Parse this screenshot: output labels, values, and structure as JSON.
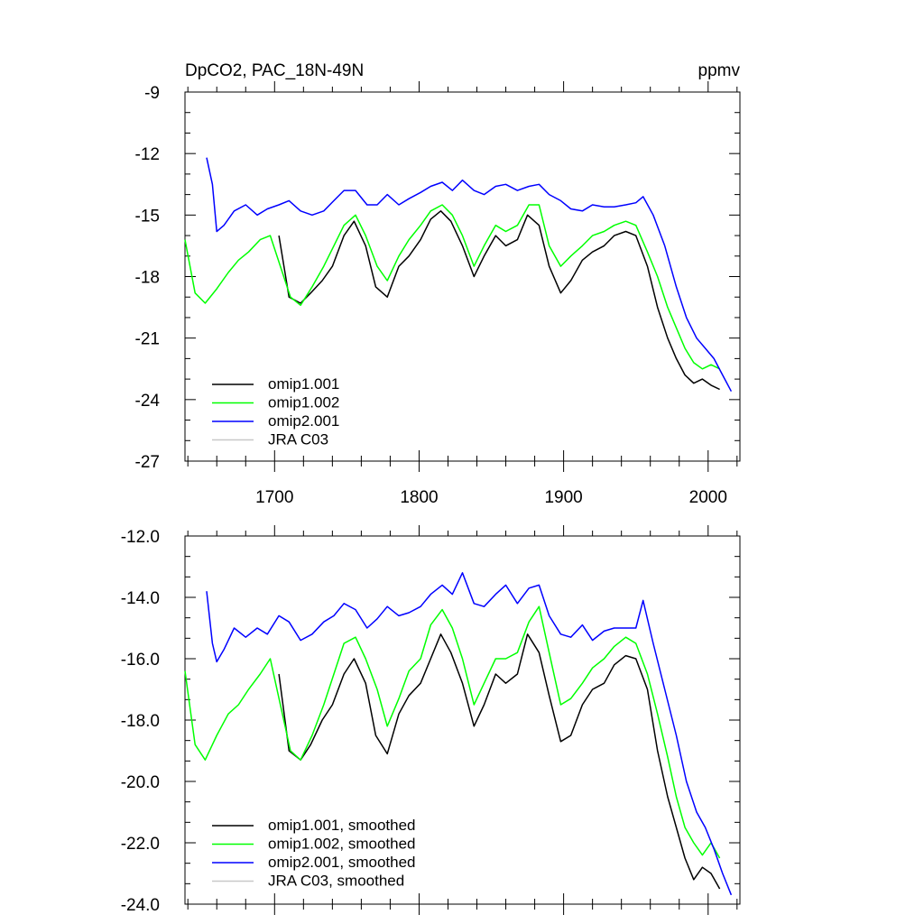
{
  "chart_data": [
    {
      "type": "line",
      "title": "DpCO2, PAC_18N-49N",
      "units": "ppmv",
      "xlim": [
        1638,
        2022
      ],
      "ylim": [
        -27,
        -9
      ],
      "yticks": [
        -9,
        -12,
        -15,
        -18,
        -21,
        -24,
        -27
      ],
      "ytick_labels": [
        "-9",
        "-12",
        "-15",
        "-18",
        "-21",
        "-24",
        "-27"
      ],
      "xticks": [
        1700,
        1800,
        1900,
        2000
      ],
      "xtick_labels": [
        "1700",
        "1800",
        "1900",
        "2000"
      ],
      "legend_position": "bottom-left",
      "series": [
        {
          "name": "omip1.001",
          "color": "#000000",
          "x": [
            1703,
            1710,
            1718,
            1725,
            1733,
            1740,
            1748,
            1755,
            1763,
            1770,
            1778,
            1786,
            1793,
            1801,
            1808,
            1815,
            1822,
            1830,
            1838,
            1845,
            1853,
            1860,
            1868,
            1875,
            1883,
            1890,
            1898,
            1905,
            1913,
            1920,
            1928,
            1935,
            1943,
            1950,
            1958,
            1965,
            1972,
            1978,
            1984,
            1990,
            1996,
            2002,
            2008
          ],
          "y": [
            -16.0,
            -19.0,
            -19.3,
            -18.8,
            -18.2,
            -17.5,
            -16.0,
            -15.3,
            -16.5,
            -18.5,
            -19.0,
            -17.5,
            -17.0,
            -16.2,
            -15.2,
            -14.8,
            -15.3,
            -16.5,
            -18.0,
            -17.0,
            -16.0,
            -16.5,
            -16.2,
            -15.0,
            -15.5,
            -17.5,
            -18.8,
            -18.2,
            -17.2,
            -16.8,
            -16.5,
            -16.0,
            -15.8,
            -16.0,
            -17.5,
            -19.5,
            -21.0,
            -22.0,
            -22.8,
            -23.2,
            -23.0,
            -23.3,
            -23.5
          ]
        },
        {
          "name": "omip1.002",
          "color": "#00ff00",
          "x": [
            1638,
            1645,
            1652,
            1660,
            1668,
            1675,
            1682,
            1690,
            1697,
            1704,
            1711,
            1718,
            1726,
            1734,
            1741,
            1748,
            1756,
            1763,
            1771,
            1778,
            1786,
            1793,
            1801,
            1808,
            1816,
            1823,
            1830,
            1838,
            1845,
            1853,
            1860,
            1868,
            1876,
            1883,
            1890,
            1898,
            1905,
            1913,
            1920,
            1928,
            1935,
            1943,
            1950,
            1958,
            1965,
            1972,
            1978,
            1984,
            1990,
            1996,
            2002,
            2008
          ],
          "y": [
            -16.2,
            -18.8,
            -19.3,
            -18.6,
            -17.8,
            -17.2,
            -16.8,
            -16.2,
            -16.0,
            -17.5,
            -19.0,
            -19.4,
            -18.5,
            -17.5,
            -16.5,
            -15.5,
            -15.0,
            -16.0,
            -17.5,
            -18.2,
            -17.0,
            -16.2,
            -15.5,
            -14.8,
            -14.5,
            -15.0,
            -16.0,
            -17.5,
            -16.5,
            -15.5,
            -15.8,
            -15.5,
            -14.5,
            -14.5,
            -16.5,
            -17.5,
            -17.0,
            -16.5,
            -16.0,
            -15.8,
            -15.5,
            -15.3,
            -15.5,
            -16.8,
            -18.0,
            -19.5,
            -20.5,
            -21.5,
            -22.2,
            -22.5,
            -22.3,
            -22.5
          ]
        },
        {
          "name": "omip2.001",
          "color": "#0000ff",
          "x": [
            1653,
            1657,
            1660,
            1665,
            1672,
            1680,
            1688,
            1695,
            1703,
            1710,
            1718,
            1726,
            1734,
            1741,
            1748,
            1756,
            1764,
            1771,
            1778,
            1786,
            1793,
            1801,
            1808,
            1816,
            1823,
            1830,
            1838,
            1845,
            1853,
            1860,
            1868,
            1876,
            1883,
            1890,
            1898,
            1905,
            1913,
            1920,
            1928,
            1935,
            1943,
            1950,
            1955,
            1962,
            1970,
            1978,
            1985,
            1992,
            1998,
            2004,
            2010,
            2016
          ],
          "y": [
            -12.2,
            -13.5,
            -15.8,
            -15.5,
            -14.8,
            -14.5,
            -15.0,
            -14.7,
            -14.5,
            -14.3,
            -14.8,
            -15.0,
            -14.8,
            -14.3,
            -13.8,
            -13.8,
            -14.5,
            -14.5,
            -14.0,
            -14.5,
            -14.2,
            -13.9,
            -13.6,
            -13.4,
            -13.8,
            -13.3,
            -13.8,
            -14.0,
            -13.6,
            -13.5,
            -13.8,
            -13.6,
            -13.5,
            -14.0,
            -14.3,
            -14.7,
            -14.8,
            -14.5,
            -14.6,
            -14.6,
            -14.5,
            -14.4,
            -14.1,
            -15.0,
            -16.5,
            -18.5,
            -20.0,
            -21.0,
            -21.5,
            -22.0,
            -22.8,
            -23.6
          ]
        },
        {
          "name": "JRA C03",
          "color": "#c8c8c8",
          "x": [],
          "y": []
        }
      ]
    },
    {
      "type": "line",
      "title": "",
      "xlim": [
        1638,
        2022
      ],
      "ylim": [
        -24.0,
        -12.0
      ],
      "yticks": [
        -12.0,
        -14.0,
        -16.0,
        -18.0,
        -20.0,
        -22.0,
        -24.0
      ],
      "ytick_labels": [
        "-12.0",
        "-14.0",
        "-16.0",
        "-18.0",
        "-20.0",
        "-22.0",
        "-24.0"
      ],
      "legend_position": "bottom-left",
      "series": [
        {
          "name": "omip1.001, smoothed",
          "color": "#000000",
          "x": [
            1703,
            1710,
            1718,
            1725,
            1733,
            1740,
            1748,
            1755,
            1763,
            1770,
            1778,
            1786,
            1793,
            1801,
            1808,
            1815,
            1822,
            1830,
            1838,
            1845,
            1853,
            1860,
            1868,
            1875,
            1883,
            1890,
            1898,
            1905,
            1913,
            1920,
            1928,
            1935,
            1943,
            1950,
            1958,
            1965,
            1972,
            1978,
            1984,
            1990,
            1996,
            2002,
            2008
          ],
          "y": [
            -16.5,
            -19.0,
            -19.3,
            -18.8,
            -18.0,
            -17.5,
            -16.5,
            -16.0,
            -16.8,
            -18.5,
            -19.1,
            -17.8,
            -17.2,
            -16.8,
            -16.0,
            -15.2,
            -15.8,
            -16.8,
            -18.2,
            -17.5,
            -16.5,
            -16.8,
            -16.5,
            -15.2,
            -15.8,
            -17.2,
            -18.7,
            -18.5,
            -17.5,
            -17.0,
            -16.8,
            -16.2,
            -15.9,
            -16.0,
            -17.0,
            -19.0,
            -20.5,
            -21.5,
            -22.5,
            -23.2,
            -22.8,
            -23.0,
            -23.5
          ]
        },
        {
          "name": "omip1.002, smoothed",
          "color": "#00ff00",
          "x": [
            1638,
            1645,
            1652,
            1660,
            1668,
            1675,
            1682,
            1690,
            1697,
            1704,
            1711,
            1718,
            1726,
            1734,
            1741,
            1748,
            1756,
            1763,
            1771,
            1778,
            1786,
            1793,
            1801,
            1808,
            1816,
            1823,
            1830,
            1838,
            1845,
            1853,
            1860,
            1868,
            1876,
            1883,
            1890,
            1898,
            1905,
            1913,
            1920,
            1928,
            1935,
            1943,
            1950,
            1958,
            1965,
            1972,
            1978,
            1984,
            1990,
            1996,
            2002,
            2008
          ],
          "y": [
            -16.4,
            -18.8,
            -19.3,
            -18.5,
            -17.8,
            -17.5,
            -17.0,
            -16.5,
            -16.0,
            -17.5,
            -19.0,
            -19.3,
            -18.5,
            -17.5,
            -16.5,
            -15.5,
            -15.3,
            -16.0,
            -17.0,
            -18.2,
            -17.3,
            -16.4,
            -16.0,
            -14.9,
            -14.4,
            -15.0,
            -16.0,
            -17.5,
            -16.8,
            -16.0,
            -16.0,
            -15.8,
            -14.8,
            -14.3,
            -15.8,
            -17.5,
            -17.3,
            -16.8,
            -16.3,
            -16.0,
            -15.6,
            -15.3,
            -15.5,
            -16.5,
            -17.8,
            -19.2,
            -20.5,
            -21.5,
            -22.0,
            -22.4,
            -22.0,
            -22.5
          ]
        },
        {
          "name": "omip2.001, smoothed",
          "color": "#0000ff",
          "x": [
            1653,
            1657,
            1660,
            1665,
            1672,
            1680,
            1688,
            1695,
            1703,
            1710,
            1718,
            1726,
            1734,
            1741,
            1748,
            1756,
            1764,
            1771,
            1778,
            1786,
            1793,
            1801,
            1808,
            1816,
            1823,
            1830,
            1838,
            1845,
            1853,
            1860,
            1868,
            1876,
            1883,
            1890,
            1898,
            1905,
            1913,
            1920,
            1928,
            1935,
            1943,
            1950,
            1955,
            1962,
            1970,
            1978,
            1985,
            1992,
            1998,
            2004,
            2010,
            2016
          ],
          "y": [
            -13.8,
            -15.5,
            -16.1,
            -15.7,
            -15.0,
            -15.3,
            -15.0,
            -15.2,
            -14.6,
            -14.8,
            -15.4,
            -15.2,
            -14.8,
            -14.6,
            -14.2,
            -14.4,
            -15.0,
            -14.7,
            -14.3,
            -14.6,
            -14.5,
            -14.3,
            -13.9,
            -13.6,
            -13.9,
            -13.2,
            -14.2,
            -14.3,
            -13.9,
            -13.6,
            -14.2,
            -13.7,
            -13.6,
            -14.6,
            -15.2,
            -15.3,
            -14.9,
            -15.4,
            -15.1,
            -15.0,
            -15.0,
            -15.0,
            -14.1,
            -15.5,
            -17.0,
            -18.5,
            -20.0,
            -21.0,
            -21.5,
            -22.2,
            -23.0,
            -23.7
          ]
        },
        {
          "name": "JRA C03, smoothed",
          "color": "#c8c8c8",
          "x": [],
          "y": []
        }
      ]
    }
  ]
}
